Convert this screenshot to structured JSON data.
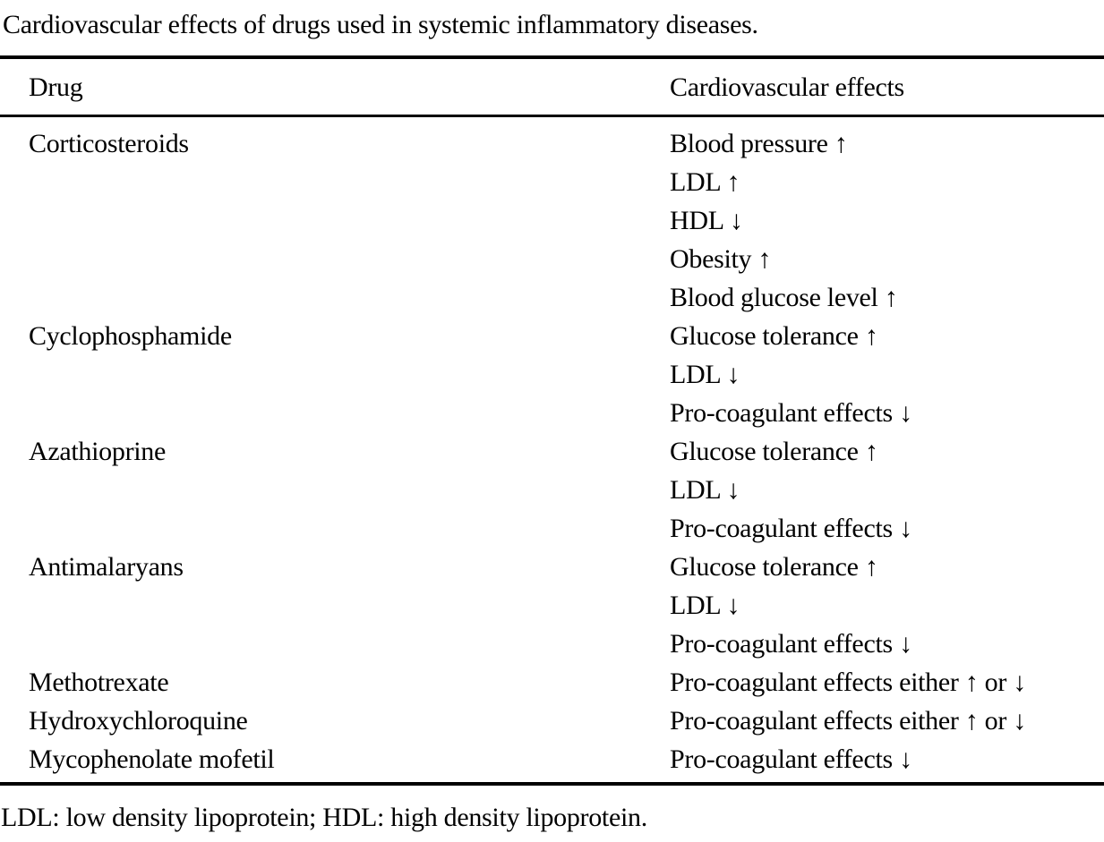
{
  "caption": "Cardiovascular effects of drugs used in systemic inflammatory diseases.",
  "table": {
    "columns": {
      "drug": "Drug",
      "effects": "Cardiovascular effects"
    },
    "rows": [
      {
        "drug": "Corticosteroids",
        "effects": [
          "Blood pressure ↑",
          "LDL ↑",
          "HDL ↓",
          "Obesity ↑",
          "Blood glucose level ↑"
        ]
      },
      {
        "drug": "Cyclophosphamide",
        "effects": [
          "Glucose tolerance ↑",
          "LDL ↓",
          "Pro-coagulant effects ↓"
        ]
      },
      {
        "drug": "Azathioprine",
        "effects": [
          "Glucose tolerance ↑",
          "LDL ↓",
          "Pro-coagulant effects ↓"
        ]
      },
      {
        "drug": "Antimalaryans",
        "effects": [
          "Glucose tolerance ↑",
          "LDL ↓",
          "Pro-coagulant effects ↓"
        ]
      },
      {
        "drug": "Methotrexate",
        "effects": [
          "Pro-coagulant effects either ↑ or ↓"
        ]
      },
      {
        "drug": "Hydroxychloroquine",
        "effects": [
          "Pro-coagulant effects either ↑ or ↓"
        ]
      },
      {
        "drug": "Mycophenolate mofetil",
        "effects": [
          "Pro-coagulant effects ↓"
        ]
      }
    ]
  },
  "footnote": "LDL: low density lipoprotein; HDL: high density lipoprotein."
}
